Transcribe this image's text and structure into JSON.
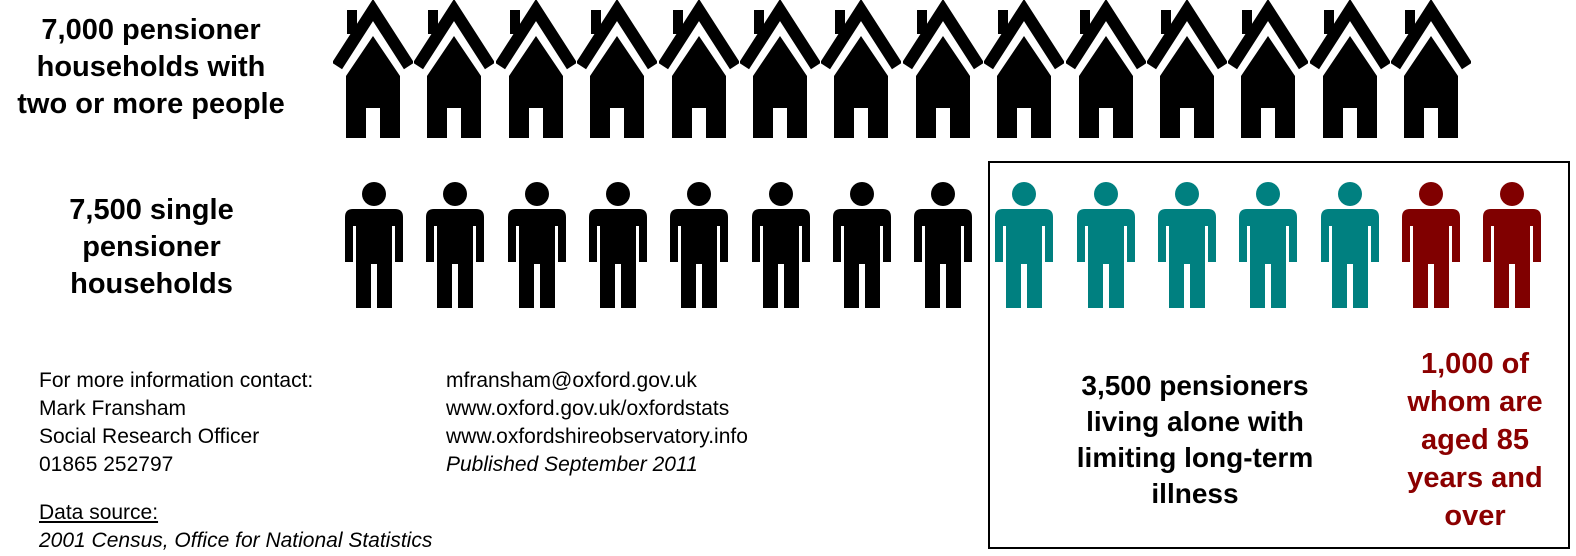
{
  "households": {
    "label_lines": [
      "7,000 pensioner",
      "households with",
      "two or more people"
    ],
    "icon": "house-icon",
    "count": 14,
    "color": "#000000"
  },
  "singles": {
    "label_lines": [
      "7,500 single",
      "pensioner",
      "households"
    ],
    "icon": "person-icon",
    "groups": [
      {
        "count": 8,
        "color": "#000000"
      },
      {
        "count": 5,
        "color": "#008080"
      },
      {
        "count": 2,
        "color": "#800000"
      }
    ]
  },
  "alone_illness": {
    "text_lines": [
      "3,500 pensioners",
      "living alone with",
      "limiting long-term",
      "illness"
    ],
    "color": "#000000"
  },
  "aged_85": {
    "text_lines": [
      "1,000 of",
      "whom are",
      "aged 85",
      "years and",
      "over"
    ],
    "color": "#8B0000"
  },
  "contact": {
    "lines": [
      "For more information contact:",
      "Mark Fransham",
      "Social Research Officer",
      "01865 252797"
    ]
  },
  "web": {
    "email": "mfransham@oxford.gov.uk",
    "url1": "www.oxford.gov.uk/oxfordstats",
    "url2": "www.oxfordshireobservatory.info",
    "published": "Published September 2011"
  },
  "source": {
    "heading": "Data source:",
    "text": "2001 Census, Office for National Statistics"
  }
}
